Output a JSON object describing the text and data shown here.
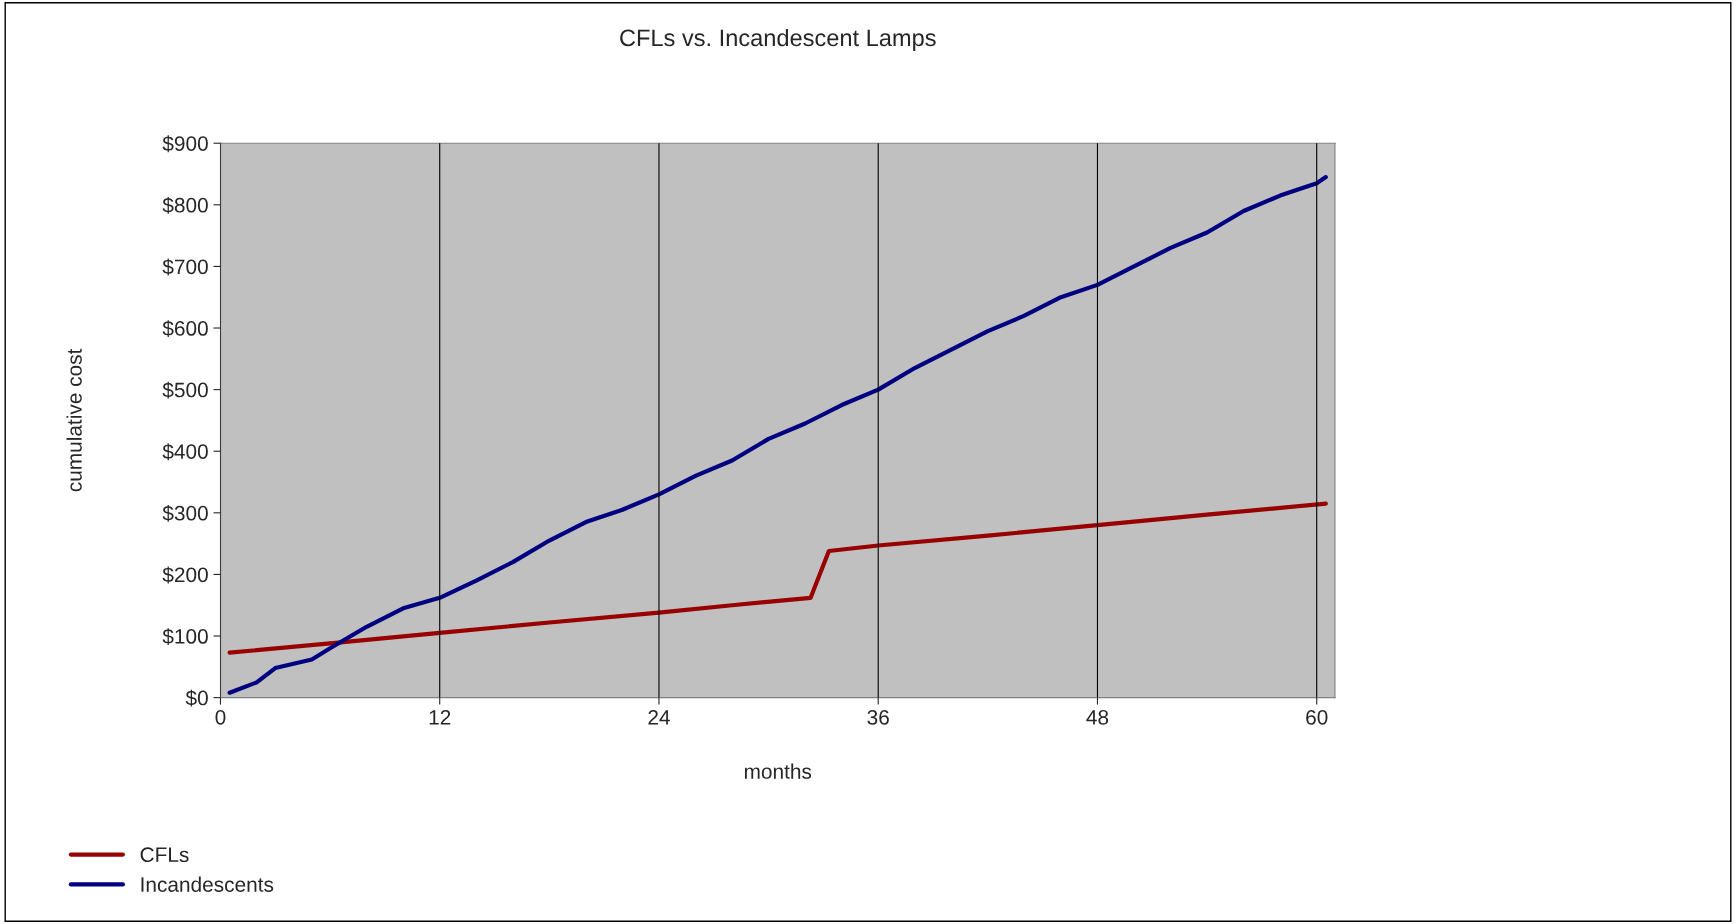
{
  "chart_data": {
    "type": "line",
    "title": "CFLs vs. Incandescent Lamps",
    "xlabel": "months",
    "ylabel": "cumulative cost",
    "xlim": [
      0,
      61
    ],
    "xticks": [
      0,
      12,
      24,
      36,
      48,
      60
    ],
    "ylim": [
      0,
      900
    ],
    "yticks": [
      {
        "value": 0,
        "label": "$0"
      },
      {
        "value": 100,
        "label": "$100"
      },
      {
        "value": 200,
        "label": "$200"
      },
      {
        "value": 300,
        "label": "$300"
      },
      {
        "value": 400,
        "label": "$400"
      },
      {
        "value": 500,
        "label": "$500"
      },
      {
        "value": 600,
        "label": "$600"
      },
      {
        "value": 700,
        "label": "$700"
      },
      {
        "value": 800,
        "label": "$800"
      },
      {
        "value": 900,
        "label": "$900"
      }
    ],
    "grid": "x",
    "legend": "bottom left",
    "marker": "none",
    "line_style": "solid",
    "series": [
      {
        "name": "CFLs",
        "color": "#990000",
        "x": [
          0.5,
          6,
          12,
          18,
          24,
          28,
          32.3,
          33.3,
          36,
          42,
          48,
          54,
          60.5
        ],
        "values": [
          73,
          88,
          105,
          122,
          138,
          150,
          162,
          238,
          247,
          263,
          280,
          297,
          315
        ]
      },
      {
        "name": "Incandescents",
        "color": "#000080",
        "x": [
          0.5,
          2,
          3,
          5,
          6,
          8,
          10,
          12,
          14,
          16,
          18,
          20,
          22,
          24,
          26,
          28,
          30,
          32,
          34,
          36,
          38,
          40,
          42,
          44,
          46,
          48,
          50,
          52,
          54,
          56,
          58,
          60,
          60.5
        ],
        "values": [
          8,
          25,
          48,
          62,
          80,
          115,
          145,
          162,
          190,
          220,
          255,
          285,
          305,
          330,
          360,
          385,
          420,
          445,
          475,
          500,
          535,
          565,
          595,
          620,
          650,
          670,
          700,
          730,
          755,
          790,
          815,
          835,
          845
        ]
      }
    ]
  }
}
